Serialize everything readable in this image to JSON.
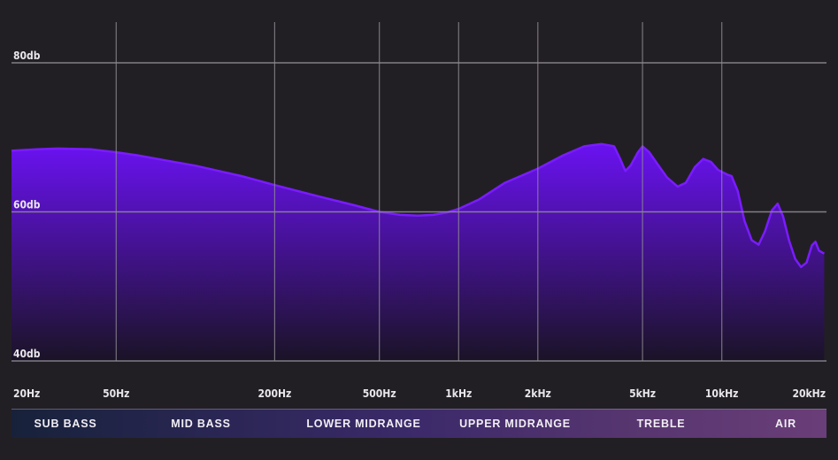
{
  "chart_data": {
    "type": "area",
    "x_scale": "log",
    "y_unit_suffix": "db",
    "xlim": [
      20,
      25000
    ],
    "ylim": [
      39,
      84
    ],
    "y_ticks": [
      {
        "value": 80,
        "label": "80db"
      },
      {
        "value": 60,
        "label": "60db"
      },
      {
        "value": 40,
        "label": "40db"
      }
    ],
    "x_ticks": [
      {
        "value": 20,
        "label": "20Hz"
      },
      {
        "value": 50,
        "label": "50Hz"
      },
      {
        "value": 200,
        "label": "200Hz"
      },
      {
        "value": 500,
        "label": "500Hz"
      },
      {
        "value": 1000,
        "label": "1kHz"
      },
      {
        "value": 2000,
        "label": "2kHz"
      },
      {
        "value": 5000,
        "label": "5kHz"
      },
      {
        "value": 10000,
        "label": "10kHz"
      },
      {
        "value": 20000,
        "label": "20kHz"
      }
    ],
    "grid": true,
    "series": [
      {
        "points": [
          [
            20,
            68.2
          ],
          [
            25,
            68.4
          ],
          [
            30,
            68.5
          ],
          [
            40,
            68.4
          ],
          [
            50,
            68.0
          ],
          [
            60,
            67.6
          ],
          [
            80,
            66.8
          ],
          [
            100,
            66.2
          ],
          [
            150,
            64.8
          ],
          [
            200,
            63.6
          ],
          [
            300,
            62.0
          ],
          [
            400,
            60.9
          ],
          [
            500,
            60.0
          ],
          [
            600,
            59.6
          ],
          [
            700,
            59.5
          ],
          [
            800,
            59.6
          ],
          [
            900,
            59.9
          ],
          [
            1000,
            60.4
          ],
          [
            1200,
            61.7
          ],
          [
            1500,
            63.9
          ],
          [
            2000,
            65.8
          ],
          [
            2500,
            67.6
          ],
          [
            3000,
            68.8
          ],
          [
            3500,
            69.1
          ],
          [
            3900,
            68.8
          ],
          [
            4100,
            67.2
          ],
          [
            4300,
            65.5
          ],
          [
            4500,
            66.2
          ],
          [
            4800,
            68.0
          ],
          [
            5000,
            68.8
          ],
          [
            5300,
            68.0
          ],
          [
            5700,
            66.4
          ],
          [
            6200,
            64.6
          ],
          [
            6800,
            63.4
          ],
          [
            7300,
            63.9
          ],
          [
            7900,
            66.0
          ],
          [
            8500,
            67.1
          ],
          [
            9100,
            66.7
          ],
          [
            9700,
            65.6
          ],
          [
            10500,
            65.0
          ],
          [
            10900,
            64.8
          ],
          [
            11500,
            62.8
          ],
          [
            12200,
            58.8
          ],
          [
            13000,
            56.2
          ],
          [
            13800,
            55.6
          ],
          [
            14600,
            57.4
          ],
          [
            15500,
            60.2
          ],
          [
            16300,
            61.1
          ],
          [
            17100,
            59.4
          ],
          [
            18000,
            56.2
          ],
          [
            19000,
            53.7
          ],
          [
            20000,
            52.6
          ],
          [
            21000,
            53.2
          ],
          [
            22000,
            55.5
          ],
          [
            22700,
            56.0
          ],
          [
            23400,
            54.8
          ],
          [
            24500,
            54.4
          ]
        ]
      }
    ],
    "colors": {
      "line": "#7a1cff",
      "fill_top": "#6a12f2",
      "fill_bottom": "#1a1326",
      "grid": "#8c8a90",
      "background": "#221f24"
    }
  },
  "bands": [
    {
      "label": "SUB BASS"
    },
    {
      "label": "MID BASS"
    },
    {
      "label": "LOWER MIDRANGE"
    },
    {
      "label": "UPPER MIDRANGE"
    },
    {
      "label": "TREBLE"
    },
    {
      "label": "AIR"
    }
  ],
  "bands_gradient": [
    "#17223a",
    "#2a2654",
    "#3c2a6a",
    "#56356f",
    "#6a3e78"
  ]
}
